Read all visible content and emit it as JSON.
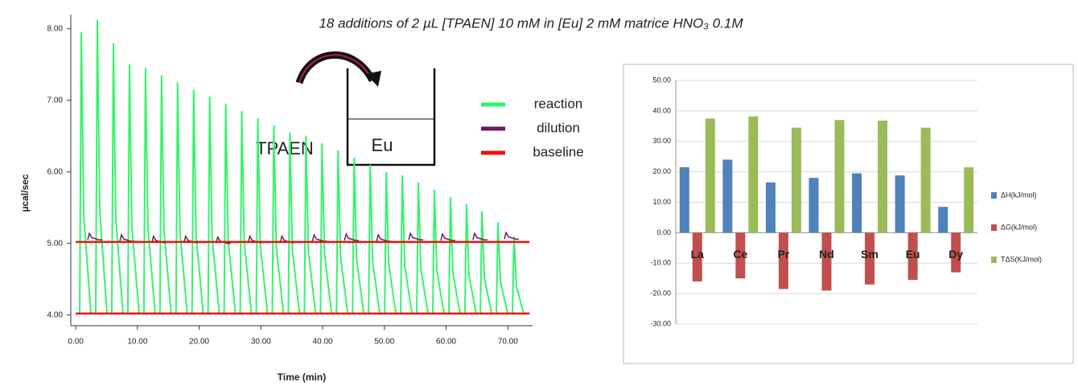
{
  "chart_data": [
    {
      "type": "line",
      "title": "18 additions of 2 µL [TPAEN] 10 mM  in [Eu] 2 mM  matrice HNO₃ 0.1M",
      "x_label": "Time (min)",
      "y_label": "µcal/sec",
      "annotations": [
        "TPAEN",
        "Eu"
      ],
      "xlim": [
        -0.8,
        74
      ],
      "ylim": [
        3.85,
        8.2
      ],
      "xticks": [
        {
          "value": 0,
          "label": "0.00"
        },
        {
          "value": 10,
          "label": "10.00"
        },
        {
          "value": 20,
          "label": "20.00"
        },
        {
          "value": 30,
          "label": "30.00"
        },
        {
          "value": 40,
          "label": "40.00"
        },
        {
          "value": 50,
          "label": "50.00"
        },
        {
          "value": 60,
          "label": "60.00"
        },
        {
          "value": 70,
          "label": "70.00"
        }
      ],
      "yticks": [
        {
          "value": 4,
          "label": "4.00"
        },
        {
          "value": 5,
          "label": "5.00"
        },
        {
          "value": 6,
          "label": "6.00"
        },
        {
          "value": 7,
          "label": "7.00"
        },
        {
          "value": 8,
          "label": "8.00"
        }
      ],
      "series": [
        {
          "name": "reaction",
          "color": "#33f56a",
          "x": [
            0.9,
            3.5,
            6.1,
            8.7,
            11.3,
            13.9,
            16.5,
            19.1,
            21.7,
            24.3,
            26.9,
            29.5,
            32.1,
            34.7,
            37.3,
            39.9,
            42.5,
            45.1,
            47.7,
            50.3,
            52.9,
            55.5,
            58.1,
            60.7,
            63.3,
            65.8,
            68.4,
            71.0
          ],
          "values": [
            7.95,
            8.12,
            7.8,
            7.5,
            7.45,
            7.35,
            7.25,
            7.15,
            7.05,
            6.95,
            6.85,
            6.75,
            6.65,
            6.55,
            6.5,
            6.4,
            6.3,
            6.2,
            6.1,
            6.0,
            5.95,
            5.85,
            5.75,
            5.65,
            5.55,
            5.45,
            5.3,
            5.1
          ]
        },
        {
          "name": "dilution",
          "color": "#6b1a5e",
          "x": [
            2.2,
            7.4,
            12.6,
            17.8,
            23.0,
            28.2,
            33.4,
            38.6,
            43.8,
            49.0,
            54.2,
            59.4,
            64.6,
            69.7
          ],
          "values": [
            5.14,
            5.12,
            5.1,
            5.1,
            5.09,
            5.1,
            5.1,
            5.12,
            5.13,
            5.12,
            5.14,
            5.13,
            5.14,
            5.15
          ]
        },
        {
          "name": "baseline",
          "color": "#ee1111",
          "x": [
            0,
            73.5,
            null,
            0,
            73.5
          ],
          "values": [
            5.02,
            5.02,
            null,
            4.02,
            4.02
          ]
        }
      ]
    },
    {
      "type": "bar",
      "categories": [
        "La",
        "Ce",
        "Pr",
        "Nd",
        "Sm",
        "Eu",
        "Dy"
      ],
      "ylim": [
        -30,
        50
      ],
      "yticks": [
        {
          "value": -30,
          "label": "-30.00"
        },
        {
          "value": -20,
          "label": "-20.00"
        },
        {
          "value": -10,
          "label": "-10.00"
        },
        {
          "value": 0,
          "label": "0.00"
        },
        {
          "value": 10,
          "label": "10.00"
        },
        {
          "value": 20,
          "label": "20.00"
        },
        {
          "value": 30,
          "label": "30.00"
        },
        {
          "value": 40,
          "label": "40.00"
        },
        {
          "value": 50,
          "label": "50.00"
        }
      ],
      "grid": true,
      "series": [
        {
          "name": "ΔH(kJ/mol)",
          "color": "#4f81bd",
          "values": [
            21.5,
            24,
            16.5,
            18,
            19.5,
            18.8,
            8.5
          ]
        },
        {
          "name": "ΔG(kJ/mol)",
          "color": "#c0504d",
          "values": [
            -16,
            -15,
            -18.5,
            -19,
            -17,
            -15.5,
            -13
          ]
        },
        {
          "name": "TΔS(KJ/mol)",
          "color": "#9bbb59",
          "values": [
            37.5,
            38.2,
            34.5,
            37,
            36.8,
            34.5,
            21.5
          ]
        }
      ]
    }
  ]
}
